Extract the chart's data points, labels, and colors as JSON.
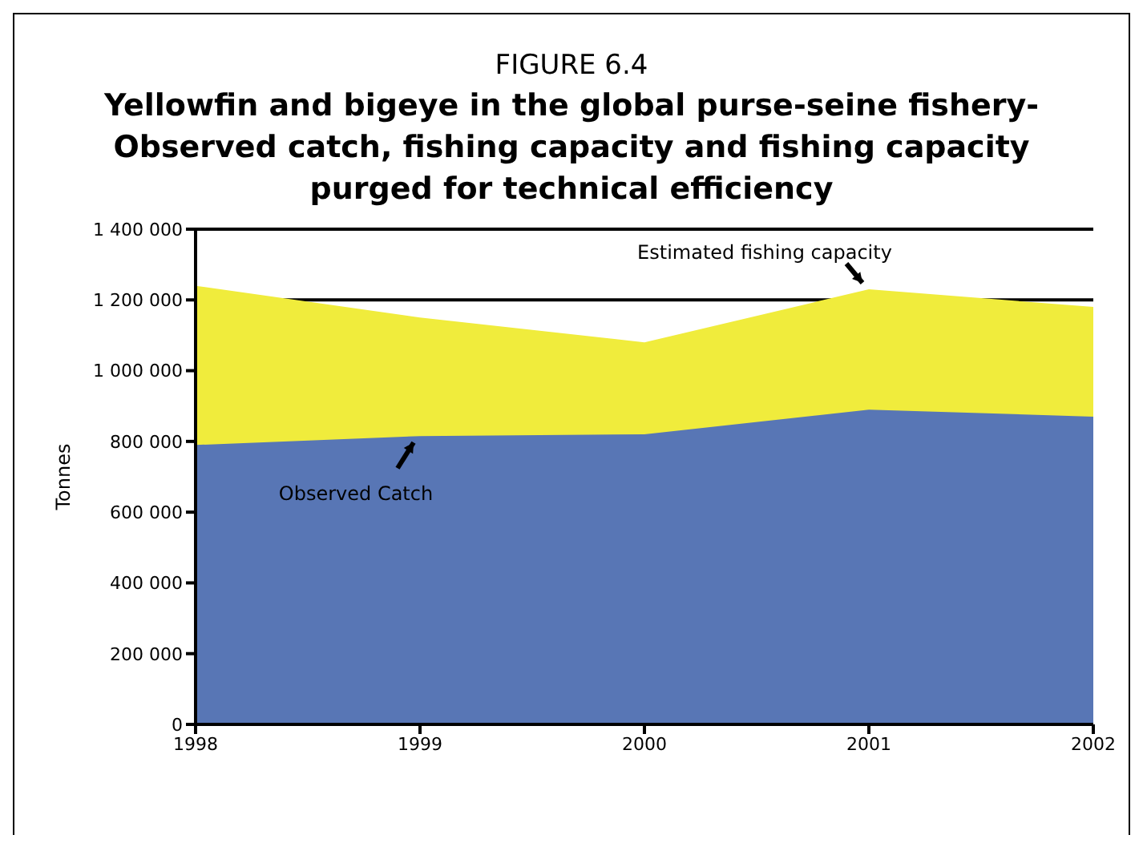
{
  "chart_data": {
    "type": "area",
    "subtitle": "FIGURE 6.4",
    "title": "Yellowfin and bigeye in the global purse-seine fishery- Observed catch, fishing capacity and fishing capacity purged for technical efficiency",
    "ylabel": "Tonnes",
    "x": [
      1998,
      1999,
      2000,
      2001,
      2002
    ],
    "series": [
      {
        "name": "Estimated fishing capacity",
        "color": "#f0ec3c",
        "values": [
          1240000,
          1150000,
          1080000,
          1230000,
          1180000
        ]
      },
      {
        "name": "Observed Catch",
        "color": "#5876b5",
        "values": [
          790000,
          815000,
          820000,
          890000,
          870000
        ]
      }
    ],
    "xlim": [
      1998,
      2002
    ],
    "xticks": [
      1998,
      1999,
      2000,
      2001,
      2002
    ],
    "ylim": [
      0,
      1400000
    ],
    "yticks": [
      0,
      200000,
      400000,
      600000,
      800000,
      1000000,
      1200000,
      1400000
    ],
    "grid": "y"
  }
}
